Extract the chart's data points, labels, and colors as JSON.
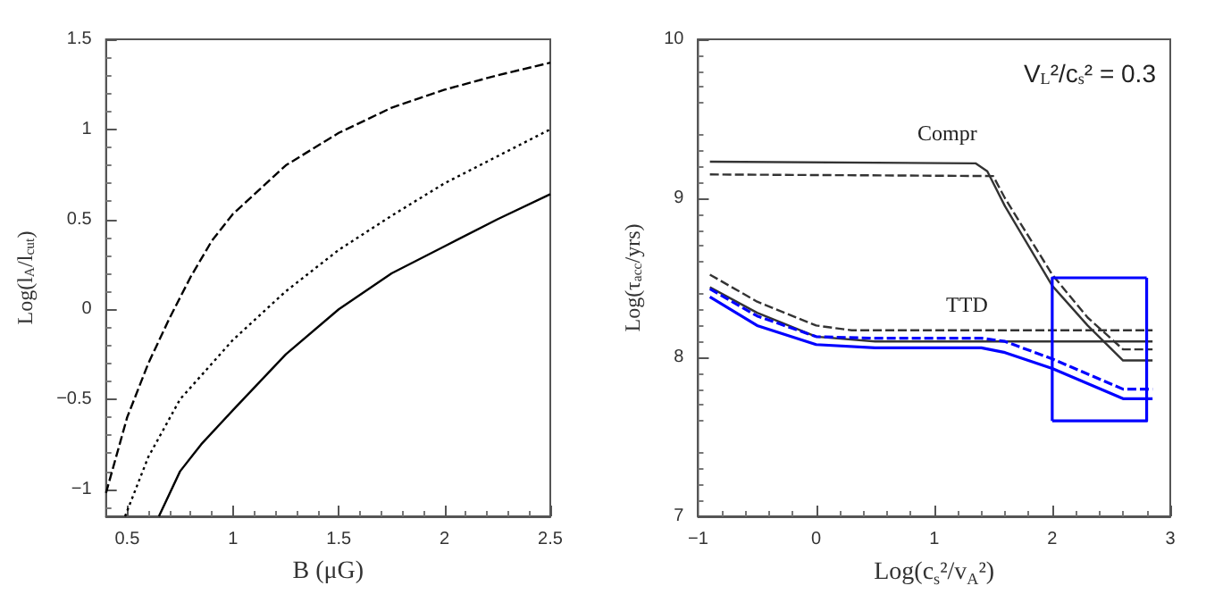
{
  "chart_data": [
    {
      "type": "line",
      "xlabel": "B (μG)",
      "ylabel": "Log(l$_{A}$/l$_{cut}$)",
      "xlim": [
        0.4,
        2.5
      ],
      "xticks": [
        0.5,
        1,
        1.5,
        2,
        2.5
      ],
      "ylim": [
        -1.15,
        1.5
      ],
      "yticks": [
        -1,
        -0.5,
        0,
        0.5,
        1,
        1.5
      ],
      "series": [
        {
          "color": "#000000",
          "line_style": "dashed",
          "x": [
            0.4,
            0.5,
            0.6,
            0.7,
            0.8,
            0.9,
            1.0,
            1.25,
            1.5,
            1.75,
            2.0,
            2.25,
            2.5
          ],
          "values": [
            -1.02,
            -0.6,
            -0.3,
            -0.05,
            0.18,
            0.38,
            0.53,
            0.8,
            0.98,
            1.12,
            1.22,
            1.3,
            1.37
          ]
        },
        {
          "color": "#000000",
          "line_style": "dotted",
          "x": [
            0.49,
            0.6,
            0.75,
            1.0,
            1.25,
            1.5,
            1.75,
            2.0,
            2.25,
            2.5
          ],
          "values": [
            -1.15,
            -0.82,
            -0.5,
            -0.17,
            0.1,
            0.33,
            0.52,
            0.7,
            0.85,
            1.0
          ]
        },
        {
          "color": "#000000",
          "line_style": "solid",
          "x": [
            0.65,
            0.75,
            0.85,
            1.0,
            1.25,
            1.5,
            1.75,
            2.0,
            2.25,
            2.5
          ],
          "values": [
            -1.15,
            -0.9,
            -0.75,
            -0.56,
            -0.25,
            0.0,
            0.2,
            0.35,
            0.5,
            0.64
          ]
        }
      ]
    },
    {
      "type": "line",
      "xlabel": "Log(c$_{s}$²/v$_{A}$²)",
      "ylabel": "Log(τ$_{acc}$/yrs)",
      "xlim": [
        -1,
        3
      ],
      "xticks": [
        -1,
        0,
        1,
        2,
        3
      ],
      "ylim": [
        7,
        10
      ],
      "yticks": [
        7,
        8,
        9,
        10
      ],
      "annotations": [
        "V$_{L}$²/c$_{s}$² = 0.3",
        "Compr",
        "TTD"
      ],
      "series": [
        {
          "color": "#333333",
          "line_style": "solid",
          "x": [
            -0.9,
            1.35,
            1.45,
            1.6,
            2.0,
            2.3,
            2.6,
            2.85
          ],
          "values": [
            9.23,
            9.22,
            9.17,
            8.95,
            8.45,
            8.2,
            7.98,
            7.98
          ]
        },
        {
          "color": "#333333",
          "line_style": "dashed",
          "x": [
            -0.9,
            1.5,
            1.6,
            2.0,
            2.3,
            2.6,
            2.85
          ],
          "values": [
            9.15,
            9.14,
            9.0,
            8.52,
            8.25,
            8.05,
            8.05
          ]
        },
        {
          "color": "#333333",
          "line_style": "dashed",
          "x": [
            -0.9,
            -0.5,
            0,
            0.3,
            2.85
          ],
          "values": [
            8.52,
            8.35,
            8.2,
            8.17,
            8.17
          ]
        },
        {
          "color": "#333333",
          "line_style": "solid",
          "x": [
            -0.9,
            -0.5,
            0,
            0.5,
            2.85
          ],
          "values": [
            8.44,
            8.28,
            8.13,
            8.1,
            8.1
          ]
        },
        {
          "color": "#0000ff",
          "line_style": "dashed",
          "x": [
            -0.9,
            -0.5,
            0,
            0.5,
            1.4,
            1.6,
            2.0,
            2.6,
            2.85
          ],
          "values": [
            8.43,
            8.26,
            8.13,
            8.12,
            8.12,
            8.1,
            7.99,
            7.8,
            7.8
          ]
        },
        {
          "color": "#0000ff",
          "line_style": "solid",
          "x": [
            -0.9,
            -0.5,
            0,
            0.5,
            1.4,
            1.6,
            2.0,
            2.6,
            2.85
          ],
          "values": [
            8.38,
            8.2,
            8.08,
            8.06,
            8.06,
            8.03,
            7.93,
            7.74,
            7.74
          ]
        },
        {
          "color": "#0000ff",
          "line_style": "solid",
          "x": [
            2,
            2,
            2.8
          ],
          "values": [
            7.6,
            8.5,
            8.5
          ]
        },
        {
          "color": "#0000ff",
          "line_style": "solid",
          "x": [
            2,
            2.8,
            2.8
          ],
          "values": [
            7.6,
            7.6,
            8.5
          ]
        }
      ]
    }
  ]
}
